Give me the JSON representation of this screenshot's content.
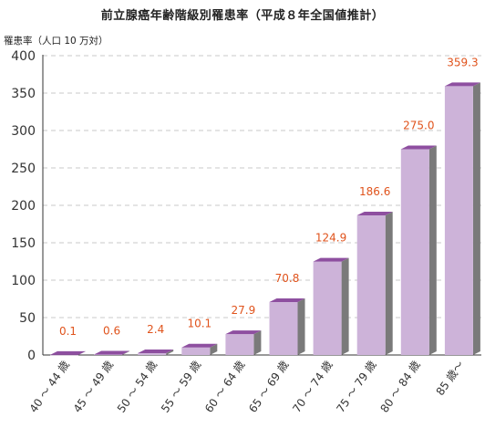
{
  "chart_data": {
    "type": "bar",
    "title": "前立腺癌年齢階級別罹患率（平成８年全国値推計）",
    "ylabel": "罹患率（人口 10 万対）",
    "xlabel": "",
    "categories": [
      "40 ～ 44 歳",
      "45 ～ 49 歳",
      "50 ～ 54 歳",
      "55 ～ 59 歳",
      "60 ～ 64 歳",
      "65 ～ 69 歳",
      "70 ～ 74 歳",
      "75 ～ 79 歳",
      "80 ～ 84 歳",
      "85 歳～"
    ],
    "values": [
      0.1,
      0.6,
      2.4,
      10.1,
      27.9,
      70.8,
      124.9,
      186.6,
      275.0,
      359.3
    ],
    "value_labels": [
      "0.1",
      "0.6",
      "2.4",
      "10.1",
      "27.9",
      "70.8",
      "124.9",
      "186.6",
      "275.0",
      "359.3"
    ],
    "ylim": [
      0,
      400
    ],
    "yticks": [
      0,
      50,
      100,
      150,
      200,
      250,
      300,
      350,
      400
    ],
    "grid": true,
    "legend": "none",
    "colors": {
      "bar_front": "#cdb3d9",
      "bar_side": "#7a7a7a",
      "bar_top": "#8e4fa0",
      "value_label": "#e0531c",
      "grid": "#c9c9c9",
      "axis": "#333333",
      "tick_label": "#333333"
    }
  }
}
